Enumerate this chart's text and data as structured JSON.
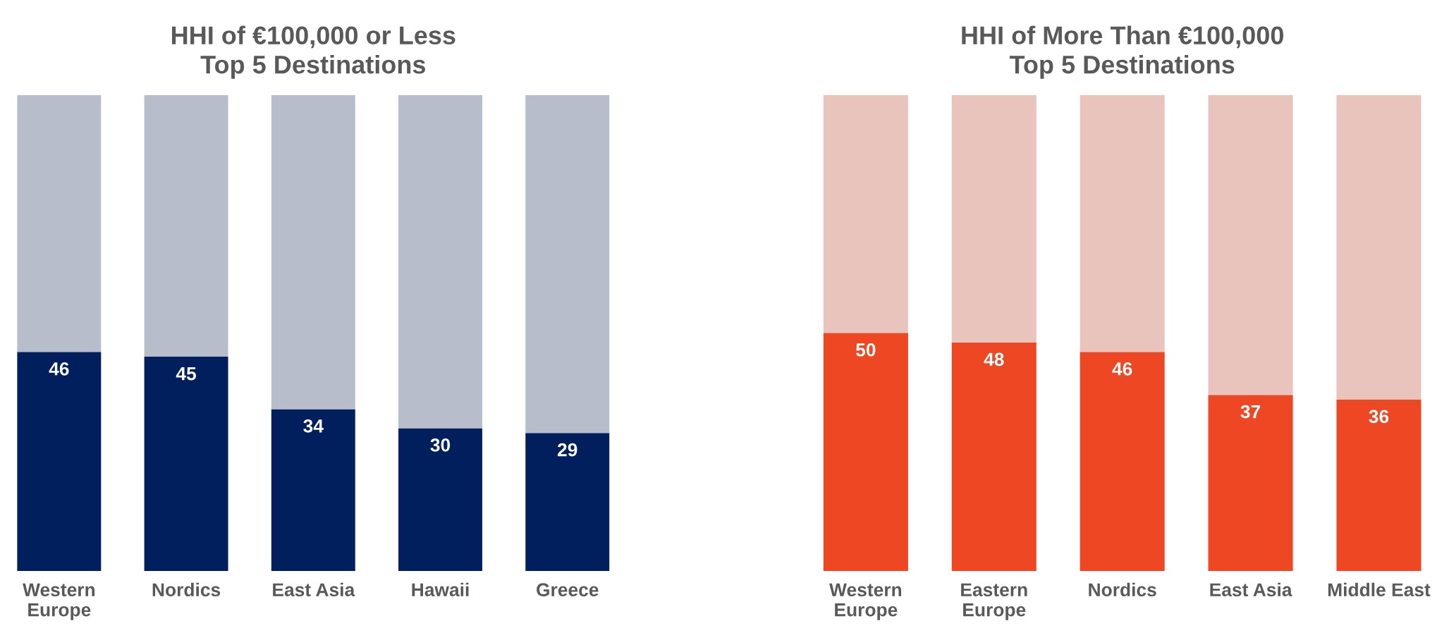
{
  "chart_data": [
    {
      "type": "bar",
      "title": "HHI of €100,000 or Less\nTop 5 Destinations",
      "categories": [
        "Western\nEurope",
        "Nordics",
        "East Asia",
        "Hawaii",
        "Greece"
      ],
      "stacked": true,
      "ylim": [
        0,
        100
      ],
      "tick_labels": "x",
      "series": [
        {
          "color": "#001f5c",
          "values": [
            46,
            45,
            34,
            30,
            29
          ],
          "value_labels": [
            "46",
            "45",
            "34",
            "30",
            "29"
          ]
        },
        {
          "color": "#b8bdcb",
          "values": [
            54,
            55,
            66,
            70,
            71
          ]
        }
      ]
    },
    {
      "type": "bar",
      "title": "HHI of More Than €100,000\nTop 5 Destinations",
      "categories": [
        "Western\nEurope",
        "Eastern\nEurope",
        "Nordics",
        "East Asia",
        "Middle East"
      ],
      "stacked": true,
      "ylim": [
        0,
        100
      ],
      "tick_labels": "x",
      "series": [
        {
          "color": "#ee4723",
          "values": [
            50,
            48,
            46,
            37,
            36
          ],
          "value_labels": [
            "50",
            "48",
            "46",
            "37",
            "36"
          ]
        },
        {
          "color": "#e8c4bd",
          "values": [
            50,
            52,
            54,
            63,
            64
          ]
        }
      ]
    }
  ]
}
